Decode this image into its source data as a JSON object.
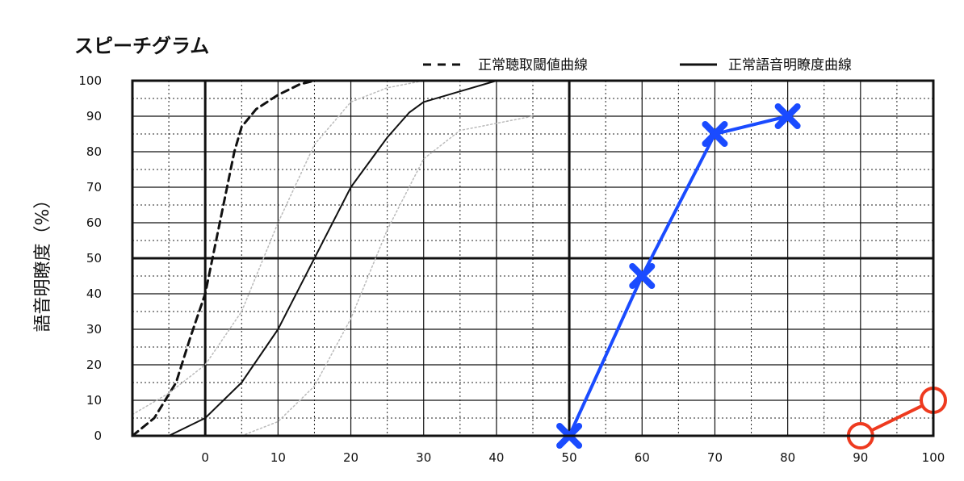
{
  "chart_data": {
    "type": "line",
    "title": "スピーチグラム",
    "ylabel": "語音明瞭度（%）",
    "xlabel": "",
    "xlim": [
      -10,
      100
    ],
    "ylim": [
      0,
      100
    ],
    "x_ticks": [
      0,
      10,
      20,
      30,
      40,
      50,
      60,
      70,
      80,
      90,
      100
    ],
    "y_ticks": [
      0,
      10,
      20,
      30,
      40,
      50,
      60,
      70,
      80,
      90,
      100
    ],
    "grid": true,
    "legend_position": "top-right",
    "legend": [
      {
        "label": "正常聴取閾値曲線",
        "style": "dashed",
        "color": "#111111"
      },
      {
        "label": "正常語音明瞭度曲線",
        "style": "solid",
        "color": "#111111"
      }
    ],
    "series": [
      {
        "name": "正常聴取閾値曲線",
        "style": "dashed",
        "color": "#111111",
        "x": [
          -10,
          -7,
          -4,
          -2,
          0,
          1,
          2,
          3,
          4,
          5,
          7,
          10,
          13,
          15
        ],
        "y": [
          0,
          5,
          15,
          28,
          40,
          50,
          60,
          70,
          80,
          87,
          92,
          96,
          99,
          100
        ]
      },
      {
        "name": "正常語音明瞭度曲線",
        "style": "solid",
        "color": "#111111",
        "x": [
          -5,
          0,
          5,
          10,
          15,
          20,
          25,
          28,
          30,
          35,
          40
        ],
        "y": [
          0,
          5,
          15,
          30,
          50,
          70,
          84,
          91,
          94,
          97,
          100
        ]
      },
      {
        "style": "dotted",
        "color": "#bbbbbb",
        "x": [
          -10,
          -5,
          0,
          5,
          10,
          15,
          20,
          25,
          30,
          35
        ],
        "y": [
          6,
          12,
          20,
          35,
          60,
          82,
          94,
          98,
          100,
          100
        ]
      },
      {
        "style": "dotted",
        "color": "#bbbbbb",
        "x": [
          5,
          10,
          15,
          20,
          25,
          30,
          35,
          40,
          45
        ],
        "y": [
          0,
          4,
          14,
          33,
          58,
          78,
          86,
          88,
          90
        ]
      },
      {
        "style": "solid",
        "color": "#1a4bff",
        "marker": "x",
        "x": [
          50,
          60,
          70,
          80
        ],
        "y": [
          0,
          45,
          85,
          90
        ]
      },
      {
        "style": "solid",
        "color": "#ee3a1f",
        "marker": "o",
        "x": [
          90,
          100
        ],
        "y": [
          0,
          10
        ]
      }
    ]
  }
}
